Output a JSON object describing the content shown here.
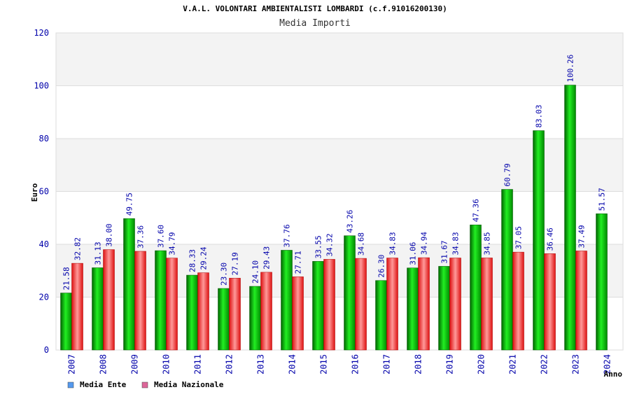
{
  "chart_data": {
    "type": "bar",
    "title": "V.A.L. VOLONTARI AMBIENTALISTI LOMBARDI (c.f.91016200130)",
    "subtitle": "Media Importi",
    "xlabel": "Anno",
    "ylabel": "Euro",
    "ylim": [
      0,
      120
    ],
    "yticks": [
      "0",
      "20",
      "40",
      "60",
      "80",
      "100",
      "120"
    ],
    "grid": true,
    "legend_position": "bottom-left",
    "categories": [
      "2007",
      "2008",
      "2009",
      "2010",
      "2011",
      "2012",
      "2013",
      "2014",
      "2015",
      "2016",
      "2017",
      "2018",
      "2019",
      "2020",
      "2021",
      "2022",
      "2023",
      "2024"
    ],
    "series": [
      {
        "name": "Media Ente",
        "color": "#00cc00",
        "legend_color": "#5599ee",
        "values": [
          21.58,
          31.13,
          49.75,
          37.6,
          28.33,
          23.3,
          24.1,
          37.76,
          33.55,
          43.26,
          26.3,
          31.06,
          31.67,
          47.36,
          60.79,
          83.03,
          100.26,
          51.57
        ],
        "labels": [
          "21.58",
          "31.13",
          "49.75",
          "37.60",
          "28.33",
          "23.30",
          "24.10",
          "37.76",
          "33.55",
          "43.26",
          "26.30",
          "31.06",
          "31.67",
          "47.36",
          "60.79",
          "83.03",
          "100.26",
          "51.57"
        ]
      },
      {
        "name": "Media Nazionale",
        "color": "#ee2222",
        "legend_color": "#dd6699",
        "values": [
          32.82,
          38.0,
          37.36,
          34.79,
          29.24,
          27.19,
          29.43,
          27.71,
          34.32,
          34.68,
          34.83,
          34.94,
          34.83,
          34.85,
          37.05,
          36.46,
          37.49,
          null
        ],
        "labels": [
          "32.82",
          "38.00",
          "37.36",
          "34.79",
          "29.24",
          "27.19",
          "29.43",
          "27.71",
          "34.32",
          "34.68",
          "34.83",
          "34.94",
          "34.83",
          "34.85",
          "37.05",
          "36.46",
          "37.49",
          ""
        ]
      }
    ]
  }
}
